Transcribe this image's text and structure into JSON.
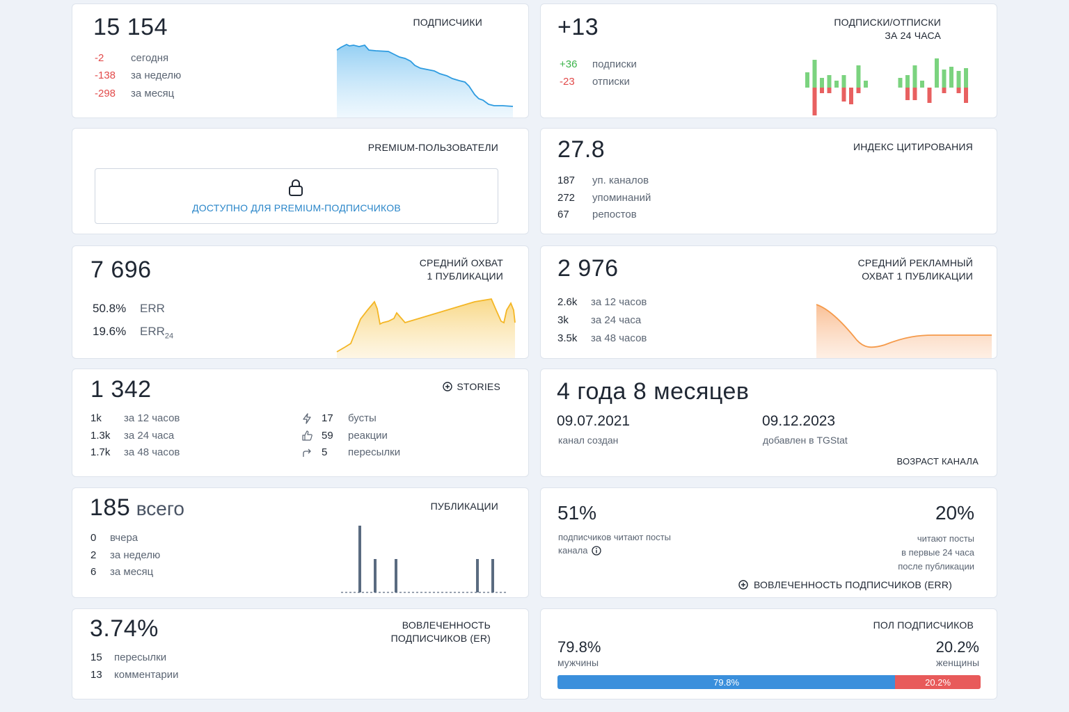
{
  "subscribers": {
    "value": "15 154",
    "label": "ПОДПИСЧИКИ",
    "rows": [
      {
        "v": "-2",
        "t": "сегодня"
      },
      {
        "v": "-138",
        "t": "за неделю"
      },
      {
        "v": "-298",
        "t": "за месяц"
      }
    ],
    "chart_color": "#2d9be0"
  },
  "subs_unsubs": {
    "value": "+13",
    "label_line1": "ПОДПИСКИ/ОТПИСКИ",
    "label_line2": "ЗА 24 ЧАСА",
    "rows": [
      {
        "v": "+36",
        "t": "подписки"
      },
      {
        "v": "-23",
        "t": "отписки"
      }
    ],
    "up_color": "#7bd37f",
    "down_color": "#e86060"
  },
  "premium": {
    "label": "PREMIUM-ПОЛЬЗОВАТЕЛИ",
    "lock_text": "ДОСТУПНО ДЛЯ PREMIUM-ПОДПИСЧИКОВ",
    "link_color": "#2a86c9"
  },
  "citation": {
    "value": "27.8",
    "label": "ИНДЕКС ЦИТИРОВАНИЯ",
    "rows": [
      {
        "v": "187",
        "t": "уп. каналов"
      },
      {
        "v": "272",
        "t": "упоминаний"
      },
      {
        "v": "67",
        "t": "репостов"
      }
    ]
  },
  "reach": {
    "value": "7 696",
    "label_line1": "СРЕДНИЙ ОХВАТ",
    "label_line2": "1 ПУБЛИКАЦИИ",
    "rows": [
      {
        "v": "50.8%",
        "t": "ERR"
      },
      {
        "v": "19.6%",
        "t": "ERR",
        "sub": "24"
      }
    ],
    "chart_color": "#f4b625"
  },
  "ad_reach": {
    "value": "2 976",
    "label_line1": "СРЕДНИЙ РЕКЛАМНЫЙ",
    "label_line2": "ОХВАТ 1 ПУБЛИКАЦИИ",
    "rows": [
      {
        "v": "2.6k",
        "t": "за 12 часов"
      },
      {
        "v": "3k",
        "t": "за 24 часа"
      },
      {
        "v": "3.5k",
        "t": "за 48 часов"
      }
    ],
    "chart_color": "#f59a4a"
  },
  "stories": {
    "value": "1 342",
    "label": "STORIES",
    "rows": [
      {
        "v": "1k",
        "t": "за 12 часов"
      },
      {
        "v": "1.3k",
        "t": "за 24 часа"
      },
      {
        "v": "1.7k",
        "t": "за 48 часов"
      }
    ],
    "right_rows": [
      {
        "icon": "lightning-icon",
        "v": "17",
        "t": "бусты"
      },
      {
        "icon": "thumbs-up-icon",
        "v": "59",
        "t": "реакции"
      },
      {
        "icon": "share-arrow-icon",
        "v": "5",
        "t": "пересылки"
      }
    ]
  },
  "age": {
    "value": "4 года 8 месяцев",
    "created_date": "09.07.2021",
    "created_label": "канал создан",
    "added_date": "09.12.2023",
    "added_label": "добавлен в TGStat",
    "label": "ВОЗРАСТ КАНАЛА"
  },
  "publications": {
    "value": "185",
    "value_suffix": "всего",
    "label": "ПУБЛИКАЦИИ",
    "rows": [
      {
        "v": "0",
        "t": "вчера"
      },
      {
        "v": "2",
        "t": "за неделю"
      },
      {
        "v": "6",
        "t": "за месяц"
      }
    ],
    "bar_color": "#5a6b80"
  },
  "err": {
    "left_value": "51%",
    "left_line1": "подписчиков читают посты",
    "left_line2": "канала",
    "right_value": "20%",
    "right_line1": "читают посты",
    "right_line2": "в первые 24 часа",
    "right_line3": "после публикации",
    "label": "ВОВЛЕЧЕННОСТЬ ПОДПИСЧИКОВ (ERR)"
  },
  "er": {
    "value": "3.74%",
    "label_line1": "ВОВЛЕЧЕННОСТЬ",
    "label_line2": "ПОДПИСЧИКОВ (ER)",
    "rows": [
      {
        "v": "15",
        "t": "пересылки"
      },
      {
        "v": "13",
        "t": "комментарии"
      }
    ]
  },
  "gender": {
    "label": "ПОЛ ПОДПИСЧИКОВ",
    "male_value": "79.8%",
    "male_label": "мужчины",
    "female_value": "20.2%",
    "female_label": "женщины",
    "male_bar_text": "79.8%",
    "female_bar_text": "20.2%",
    "male_fraction": 0.798,
    "male_color": "#3a8fdc",
    "female_color": "#e85a5a"
  }
}
